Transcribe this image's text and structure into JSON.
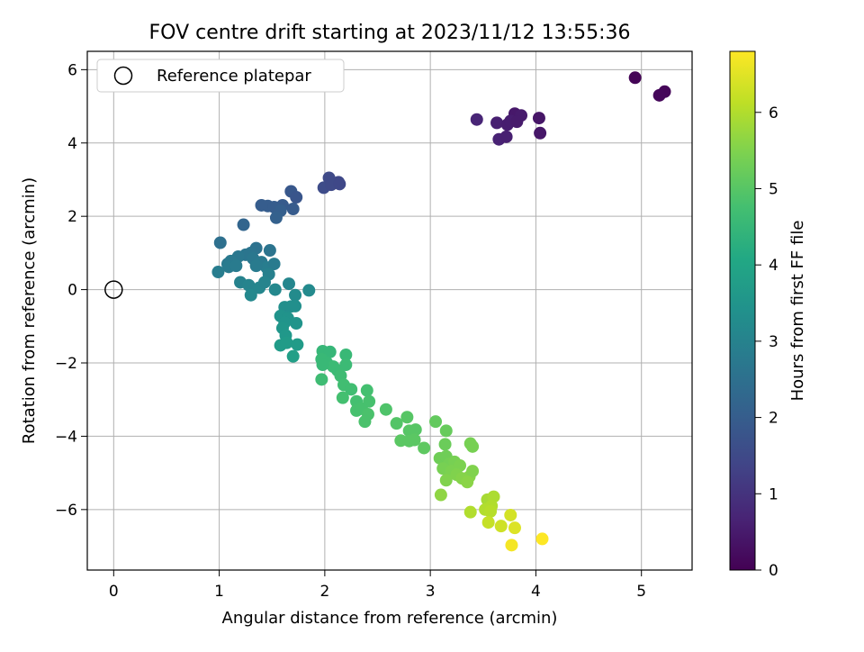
{
  "chart_data": {
    "type": "scatter",
    "title": "FOV centre drift starting at 2023/11/12 13:55:36",
    "xlabel": "Angular distance from reference (arcmin)",
    "ylabel": "Rotation from reference (arcmin)",
    "xlim": [
      -0.25,
      5.48
    ],
    "ylim": [
      -7.65,
      6.5
    ],
    "xticks": [
      0,
      1,
      2,
      3,
      4,
      5
    ],
    "yticks": [
      -6,
      -4,
      -2,
      0,
      2,
      4,
      6
    ],
    "grid": true,
    "legend": {
      "placement": "top-left",
      "entries": [
        {
          "label": "Reference platepar",
          "marker": "open-circle"
        }
      ]
    },
    "reference_point": {
      "x": 0,
      "y": 0,
      "label": "Reference platepar"
    },
    "colorbar": {
      "label": "Hours from first FF file",
      "range": [
        0,
        6.8
      ],
      "ticks": [
        0,
        1,
        2,
        3,
        4,
        5,
        6
      ],
      "colormap": "viridis"
    },
    "points": [
      {
        "x": 4.94,
        "y": 5.78,
        "t": 0.05
      },
      {
        "x": 5.22,
        "y": 5.4,
        "t": 0.1
      },
      {
        "x": 5.17,
        "y": 5.3,
        "t": 0.12
      },
      {
        "x": 3.44,
        "y": 4.64,
        "t": 0.7
      },
      {
        "x": 3.63,
        "y": 4.55,
        "t": 0.6
      },
      {
        "x": 3.73,
        "y": 4.5,
        "t": 0.55
      },
      {
        "x": 3.8,
        "y": 4.8,
        "t": 0.45
      },
      {
        "x": 3.86,
        "y": 4.75,
        "t": 0.5
      },
      {
        "x": 3.76,
        "y": 4.6,
        "t": 0.55
      },
      {
        "x": 4.03,
        "y": 4.68,
        "t": 0.4
      },
      {
        "x": 4.04,
        "y": 4.27,
        "t": 0.42
      },
      {
        "x": 3.65,
        "y": 4.1,
        "t": 0.65
      },
      {
        "x": 3.72,
        "y": 4.17,
        "t": 0.6
      },
      {
        "x": 3.82,
        "y": 4.58,
        "t": 0.5
      },
      {
        "x": 2.04,
        "y": 3.05,
        "t": 1.5
      },
      {
        "x": 2.13,
        "y": 2.93,
        "t": 1.45
      },
      {
        "x": 1.99,
        "y": 2.78,
        "t": 1.55
      },
      {
        "x": 2.06,
        "y": 2.86,
        "t": 1.5
      },
      {
        "x": 2.14,
        "y": 2.88,
        "t": 1.45
      },
      {
        "x": 1.68,
        "y": 2.68,
        "t": 1.85
      },
      {
        "x": 1.73,
        "y": 2.52,
        "t": 1.8
      },
      {
        "x": 1.6,
        "y": 2.3,
        "t": 1.95
      },
      {
        "x": 1.46,
        "y": 2.28,
        "t": 2.0
      },
      {
        "x": 1.52,
        "y": 2.25,
        "t": 2.0
      },
      {
        "x": 1.58,
        "y": 2.15,
        "t": 2.05
      },
      {
        "x": 1.7,
        "y": 2.2,
        "t": 1.95
      },
      {
        "x": 1.54,
        "y": 1.96,
        "t": 2.1
      },
      {
        "x": 1.4,
        "y": 2.3,
        "t": 2.0
      },
      {
        "x": 1.23,
        "y": 1.77,
        "t": 2.2
      },
      {
        "x": 1.01,
        "y": 1.28,
        "t": 2.5
      },
      {
        "x": 1.35,
        "y": 1.13,
        "t": 2.55
      },
      {
        "x": 1.48,
        "y": 1.07,
        "t": 2.6
      },
      {
        "x": 1.3,
        "y": 1.0,
        "t": 2.6
      },
      {
        "x": 1.25,
        "y": 0.95,
        "t": 2.65
      },
      {
        "x": 1.18,
        "y": 0.9,
        "t": 2.7
      },
      {
        "x": 1.11,
        "y": 0.78,
        "t": 2.75
      },
      {
        "x": 1.08,
        "y": 0.7,
        "t": 2.75
      },
      {
        "x": 1.09,
        "y": 0.62,
        "t": 2.8
      },
      {
        "x": 0.99,
        "y": 0.48,
        "t": 2.85
      },
      {
        "x": 1.16,
        "y": 0.65,
        "t": 2.8
      },
      {
        "x": 1.32,
        "y": 0.85,
        "t": 2.7
      },
      {
        "x": 1.4,
        "y": 0.75,
        "t": 2.75
      },
      {
        "x": 1.45,
        "y": 0.6,
        "t": 2.85
      },
      {
        "x": 1.52,
        "y": 0.7,
        "t": 2.8
      },
      {
        "x": 1.47,
        "y": 0.42,
        "t": 2.95
      },
      {
        "x": 1.35,
        "y": 0.65,
        "t": 2.8
      },
      {
        "x": 1.2,
        "y": 0.2,
        "t": 3.0
      },
      {
        "x": 1.28,
        "y": 0.12,
        "t": 3.05
      },
      {
        "x": 1.3,
        "y": -0.15,
        "t": 3.15
      },
      {
        "x": 1.38,
        "y": 0.05,
        "t": 3.1
      },
      {
        "x": 1.43,
        "y": 0.2,
        "t": 3.05
      },
      {
        "x": 1.53,
        "y": 0.0,
        "t": 3.15
      },
      {
        "x": 1.66,
        "y": 0.16,
        "t": 3.1
      },
      {
        "x": 1.85,
        "y": -0.02,
        "t": 3.2
      },
      {
        "x": 1.72,
        "y": -0.15,
        "t": 3.25
      },
      {
        "x": 1.62,
        "y": -0.48,
        "t": 3.35
      },
      {
        "x": 1.68,
        "y": -0.46,
        "t": 3.35
      },
      {
        "x": 1.72,
        "y": -0.45,
        "t": 3.35
      },
      {
        "x": 1.58,
        "y": -0.72,
        "t": 3.45
      },
      {
        "x": 1.65,
        "y": -0.78,
        "t": 3.45
      },
      {
        "x": 1.62,
        "y": -0.9,
        "t": 3.5
      },
      {
        "x": 1.73,
        "y": -0.92,
        "t": 3.5
      },
      {
        "x": 1.6,
        "y": -1.05,
        "t": 3.55
      },
      {
        "x": 1.63,
        "y": -1.25,
        "t": 3.6
      },
      {
        "x": 1.58,
        "y": -1.52,
        "t": 3.7
      },
      {
        "x": 1.64,
        "y": -1.45,
        "t": 3.7
      },
      {
        "x": 1.74,
        "y": -1.5,
        "t": 3.7
      },
      {
        "x": 1.7,
        "y": -1.82,
        "t": 3.8
      },
      {
        "x": 1.98,
        "y": -1.68,
        "t": 4.5
      },
      {
        "x": 2.05,
        "y": -1.7,
        "t": 4.5
      },
      {
        "x": 2.2,
        "y": -1.78,
        "t": 4.55
      },
      {
        "x": 1.97,
        "y": -1.9,
        "t": 4.55
      },
      {
        "x": 2.02,
        "y": -2.0,
        "t": 4.55
      },
      {
        "x": 2.08,
        "y": -2.1,
        "t": 4.6
      },
      {
        "x": 1.98,
        "y": -2.05,
        "t": 4.55
      },
      {
        "x": 2.12,
        "y": -2.2,
        "t": 4.6
      },
      {
        "x": 2.2,
        "y": -2.05,
        "t": 4.6
      },
      {
        "x": 1.97,
        "y": -2.45,
        "t": 4.65
      },
      {
        "x": 2.15,
        "y": -2.35,
        "t": 4.65
      },
      {
        "x": 2.18,
        "y": -2.6,
        "t": 4.7
      },
      {
        "x": 2.25,
        "y": -2.72,
        "t": 4.7
      },
      {
        "x": 2.17,
        "y": -2.95,
        "t": 4.75
      },
      {
        "x": 2.3,
        "y": -3.05,
        "t": 4.75
      },
      {
        "x": 2.4,
        "y": -2.75,
        "t": 4.75
      },
      {
        "x": 2.42,
        "y": -3.05,
        "t": 4.8
      },
      {
        "x": 2.3,
        "y": -3.3,
        "t": 4.8
      },
      {
        "x": 2.35,
        "y": -3.25,
        "t": 4.8
      },
      {
        "x": 2.41,
        "y": -3.4,
        "t": 4.85
      },
      {
        "x": 2.38,
        "y": -3.6,
        "t": 4.85
      },
      {
        "x": 2.58,
        "y": -3.27,
        "t": 4.9
      },
      {
        "x": 2.68,
        "y": -3.65,
        "t": 4.95
      },
      {
        "x": 2.78,
        "y": -3.48,
        "t": 5.0
      },
      {
        "x": 2.8,
        "y": -3.85,
        "t": 5.0
      },
      {
        "x": 2.86,
        "y": -3.82,
        "t": 5.0
      },
      {
        "x": 2.72,
        "y": -4.12,
        "t": 5.05
      },
      {
        "x": 2.8,
        "y": -4.13,
        "t": 5.05
      },
      {
        "x": 2.85,
        "y": -4.1,
        "t": 5.05
      },
      {
        "x": 2.94,
        "y": -4.32,
        "t": 5.1
      },
      {
        "x": 3.05,
        "y": -3.6,
        "t": 5.15
      },
      {
        "x": 3.15,
        "y": -3.85,
        "t": 5.2
      },
      {
        "x": 3.14,
        "y": -4.22,
        "t": 5.25
      },
      {
        "x": 3.09,
        "y": -4.6,
        "t": 5.3
      },
      {
        "x": 3.15,
        "y": -4.55,
        "t": 5.3
      },
      {
        "x": 3.18,
        "y": -4.75,
        "t": 5.35
      },
      {
        "x": 3.23,
        "y": -4.7,
        "t": 5.4
      },
      {
        "x": 3.12,
        "y": -4.88,
        "t": 5.4
      },
      {
        "x": 3.2,
        "y": -4.95,
        "t": 5.45
      },
      {
        "x": 3.28,
        "y": -4.8,
        "t": 5.45
      },
      {
        "x": 3.25,
        "y": -5.05,
        "t": 5.5
      },
      {
        "x": 3.15,
        "y": -5.2,
        "t": 5.5
      },
      {
        "x": 3.3,
        "y": -5.15,
        "t": 5.55
      },
      {
        "x": 3.37,
        "y": -5.1,
        "t": 5.55
      },
      {
        "x": 3.4,
        "y": -4.95,
        "t": 5.5
      },
      {
        "x": 3.35,
        "y": -5.25,
        "t": 5.6
      },
      {
        "x": 3.38,
        "y": -4.2,
        "t": 5.4
      },
      {
        "x": 3.4,
        "y": -4.28,
        "t": 5.4
      },
      {
        "x": 3.1,
        "y": -5.6,
        "t": 5.65
      },
      {
        "x": 3.54,
        "y": -5.73,
        "t": 5.9
      },
      {
        "x": 3.6,
        "y": -5.65,
        "t": 5.95
      },
      {
        "x": 3.58,
        "y": -5.9,
        "t": 6.0
      },
      {
        "x": 3.52,
        "y": -6.0,
        "t": 6.0
      },
      {
        "x": 3.57,
        "y": -6.05,
        "t": 6.05
      },
      {
        "x": 3.38,
        "y": -6.07,
        "t": 6.0
      },
      {
        "x": 3.55,
        "y": -6.35,
        "t": 6.2
      },
      {
        "x": 3.67,
        "y": -6.45,
        "t": 6.3
      },
      {
        "x": 3.76,
        "y": -6.15,
        "t": 6.35
      },
      {
        "x": 3.8,
        "y": -6.5,
        "t": 6.45
      },
      {
        "x": 3.77,
        "y": -6.97,
        "t": 6.7
      },
      {
        "x": 4.06,
        "y": -6.8,
        "t": 6.8
      }
    ]
  }
}
